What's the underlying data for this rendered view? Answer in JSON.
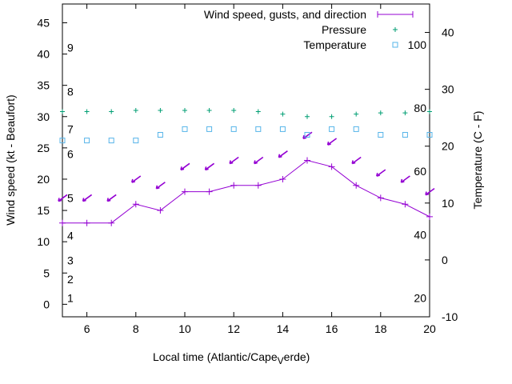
{
  "chart_data": {
    "type": "line",
    "xlabel": "Local time (Atlantic/Cape",
    "xlabel_sub": "V",
    "xlabel_tail": "erde)",
    "ylabel": "Wind speed (kt - Beaufort)",
    "y2label": "Temperature (C - F)",
    "xlim": [
      5,
      20
    ],
    "ylim": [
      -2,
      48
    ],
    "y2lim": [
      -10,
      45
    ],
    "x_ticks": [
      6,
      8,
      10,
      12,
      14,
      16,
      18,
      20
    ],
    "y_ticks": [
      0,
      5,
      10,
      15,
      20,
      25,
      30,
      35,
      40,
      45
    ],
    "y2_ticks": [
      -10,
      0,
      10,
      20,
      30,
      40
    ],
    "beaufort_labels": [
      {
        "label": "1",
        "y": 1
      },
      {
        "label": "2",
        "y": 4
      },
      {
        "label": "3",
        "y": 7
      },
      {
        "label": "4",
        "y": 11
      },
      {
        "label": "5",
        "y": 17
      },
      {
        "label": "6",
        "y": 24
      },
      {
        "label": "7",
        "y": 28
      },
      {
        "label": "8",
        "y": 34
      },
      {
        "label": "9",
        "y": 41
      }
    ],
    "fahrenheit_labels": [
      {
        "label": "20",
        "c": -6.7
      },
      {
        "label": "40",
        "c": 4.4
      },
      {
        "label": "60",
        "c": 15.6
      },
      {
        "label": "80",
        "c": 26.7
      },
      {
        "label": "100",
        "c": 37.8
      }
    ],
    "legend": [
      {
        "label": "Wind speed, gusts, and direction",
        "series": "wind"
      },
      {
        "label": "Pressure",
        "series": "pressure"
      },
      {
        "label": "Temperature",
        "series": "temperature"
      }
    ],
    "colors": {
      "wind": "#9400d3",
      "pressure": "#009e73",
      "temperature": "#56b4e9"
    },
    "series": [
      {
        "name": "Wind speed",
        "x": [
          5,
          6,
          7,
          8,
          9,
          10,
          11,
          12,
          13,
          14,
          15,
          16,
          17,
          18,
          19,
          20
        ],
        "values": [
          13,
          13,
          13,
          16,
          15,
          18,
          18,
          19,
          19,
          20,
          23,
          22,
          19,
          17,
          16,
          14
        ]
      },
      {
        "name": "Gusts / direction",
        "x": [
          5,
          6,
          7,
          8,
          9,
          10,
          11,
          12,
          13,
          14,
          15,
          16,
          17,
          18,
          19,
          20
        ],
        "values": [
          17,
          17,
          17,
          20,
          19,
          22,
          22,
          23,
          23,
          24,
          27,
          26,
          23,
          21,
          20,
          18
        ]
      },
      {
        "name": "Pressure",
        "x": [
          5,
          6,
          7,
          8,
          9,
          10,
          11,
          12,
          13,
          14,
          15,
          16,
          17,
          18,
          19,
          20
        ],
        "values": [
          30.8,
          30.8,
          30.8,
          31.0,
          31.0,
          31.0,
          31.0,
          31.0,
          30.8,
          30.4,
          30.0,
          30.0,
          30.4,
          30.6,
          30.6,
          30.8
        ]
      },
      {
        "name": "Temperature",
        "x": [
          5,
          6,
          7,
          8,
          9,
          10,
          11,
          12,
          13,
          14,
          15,
          16,
          17,
          18,
          19,
          20
        ],
        "values": [
          21,
          21,
          21,
          21,
          22,
          23,
          23,
          23,
          23,
          23,
          22,
          23,
          23,
          22,
          22,
          22
        ]
      }
    ]
  }
}
